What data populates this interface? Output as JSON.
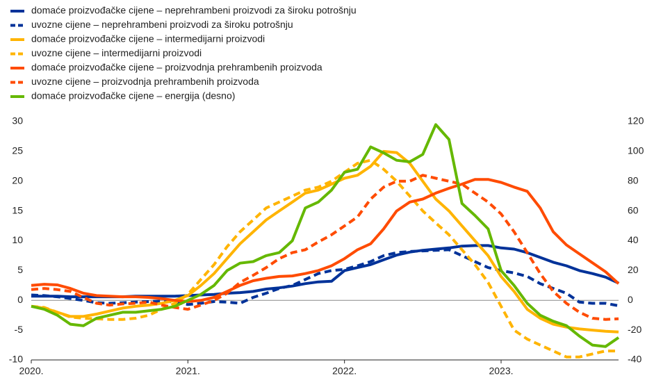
{
  "chart_data": {
    "type": "line",
    "x": [
      2020,
      2020.083,
      2020.167,
      2020.25,
      2020.333,
      2020.417,
      2020.5,
      2020.583,
      2020.667,
      2020.75,
      2020.833,
      2020.917,
      2021,
      2021.083,
      2021.167,
      2021.25,
      2021.333,
      2021.417,
      2021.5,
      2021.583,
      2021.667,
      2021.75,
      2021.833,
      2021.917,
      2022,
      2022.083,
      2022.167,
      2022.25,
      2022.333,
      2022.417,
      2022.5,
      2022.583,
      2022.667,
      2022.75,
      2022.833,
      2022.917,
      2023,
      2023.083,
      2023.167,
      2023.25,
      2023.333,
      2023.417,
      2023.5,
      2023.583,
      2023.667,
      2023.75
    ],
    "xlim": [
      2020,
      2023.75
    ],
    "xticks": [
      {
        "value": 2020,
        "label": "2020."
      },
      {
        "value": 2021,
        "label": "2021."
      },
      {
        "value": 2022,
        "label": "2022."
      },
      {
        "value": 2023,
        "label": "2023."
      }
    ],
    "ylim": [
      -10,
      30
    ],
    "yticks": [
      -10,
      -5,
      0,
      5,
      10,
      15,
      20,
      25,
      30
    ],
    "y2lim": [
      -40,
      120
    ],
    "y2ticks": [
      -40,
      -20,
      0,
      20,
      40,
      60,
      80,
      100,
      120
    ],
    "series": [
      {
        "name": "domaće proizvođačke cijene – neprehrambeni proizvodi za široku potrošnju",
        "color": "#003299",
        "dash": false,
        "values": [
          0.7,
          0.7,
          0.7,
          0.6,
          0.6,
          0.6,
          0.6,
          0.6,
          0.7,
          0.7,
          0.7,
          0.7,
          0.8,
          0.9,
          1.0,
          1.2,
          1.3,
          1.5,
          1.9,
          2.1,
          2.4,
          2.8,
          3.1,
          3.2,
          5.0,
          5.5,
          6.0,
          6.8,
          7.6,
          8.1,
          8.4,
          8.6,
          8.8,
          9.1,
          9.2,
          9.2,
          8.8,
          8.6,
          8.0,
          7.2,
          6.4,
          5.8,
          5.0,
          4.5,
          3.9,
          2.9
        ]
      },
      {
        "name": "uvozne cijene – neprehrambeni proizvodi za široku potrošnju",
        "color": "#003299",
        "dash": true,
        "values": [
          0.9,
          0.8,
          0.6,
          0.3,
          0,
          -0.4,
          -0.5,
          -0.4,
          -0.3,
          -0.2,
          -0.1,
          -0.3,
          -0.7,
          -0.5,
          -0.2,
          -0.3,
          -0.5,
          0.5,
          1.2,
          2.0,
          2.5,
          3.5,
          4.5,
          5.0,
          5.2,
          5.8,
          6.5,
          7.5,
          8.0,
          8.2,
          8.3,
          8.4,
          8.5,
          7.5,
          6.5,
          5.5,
          5.0,
          4.6,
          4.0,
          2.8,
          2.0,
          1.2,
          -0.3,
          -0.5,
          -0.5,
          -0.9
        ]
      },
      {
        "name": "domaće proizvođačke cijene – intermedijarni proizvodi",
        "color": "#ffb400",
        "dash": false,
        "values": [
          -1,
          -1.3,
          -2,
          -2.7,
          -2.7,
          -2.3,
          -1.8,
          -1.3,
          -1.0,
          -0.8,
          -0.5,
          0,
          0.8,
          2.5,
          4.5,
          7,
          9.5,
          11.5,
          13.5,
          15,
          16.5,
          18,
          18.5,
          19.5,
          20.5,
          21,
          22.5,
          25,
          24.8,
          23,
          20,
          17,
          15,
          12.5,
          10,
          7.5,
          4,
          1.5,
          -1.5,
          -3,
          -4,
          -4.5,
          -4.8,
          -5,
          -5.2,
          -5.3
        ]
      },
      {
        "name": "uvozne cijene – intermedijarni proizvodi",
        "color": "#ffb400",
        "dash": true,
        "values": [
          -1,
          -1.2,
          -2,
          -2.8,
          -3,
          -3.1,
          -3.2,
          -3.2,
          -3,
          -2.5,
          -1.5,
          -0.5,
          1,
          3.5,
          6,
          9,
          11.5,
          13.5,
          15.5,
          16.5,
          17.5,
          18.5,
          19,
          20,
          21.5,
          23,
          23.5,
          22,
          20,
          17.5,
          15,
          13,
          11,
          8.5,
          6,
          3,
          -1,
          -5,
          -6.5,
          -7.5,
          -8.5,
          -9.5,
          -9.5,
          -9,
          -8.5,
          -8.5
        ]
      },
      {
        "name": "domaće proizvođačke cijene – proizvodnja prehrambenih proizvoda",
        "color": "#ff4b00",
        "dash": false,
        "values": [
          2.5,
          2.7,
          2.6,
          2,
          1.2,
          0.8,
          0.7,
          0.6,
          0.6,
          0.5,
          0.3,
          0,
          -0.2,
          0,
          0.5,
          1.5,
          2.5,
          3.3,
          3.7,
          4,
          4.1,
          4.5,
          5,
          5.8,
          7,
          8.5,
          9.5,
          12,
          15,
          16.5,
          17,
          18,
          18.8,
          19.5,
          20.3,
          20.3,
          19.8,
          19,
          18.3,
          15.5,
          11.5,
          9.3,
          7.8,
          6.3,
          4.8,
          2.8
        ]
      },
      {
        "name": "uvozne cijene – proizvodnja prehrambenih proizvoda",
        "color": "#ff4b00",
        "dash": true,
        "values": [
          1.8,
          2,
          1.8,
          1.5,
          0.5,
          -0.5,
          -0.8,
          -0.6,
          -0.5,
          -0.3,
          -0.8,
          -1.2,
          -1.5,
          -0.8,
          0,
          1.2,
          3,
          4.2,
          5.5,
          7,
          8,
          8.5,
          9.8,
          11,
          12.5,
          14,
          17,
          19,
          20,
          20,
          21,
          20.5,
          20,
          19.5,
          18,
          16.5,
          14.5,
          11.5,
          8,
          4.5,
          1.5,
          -0.5,
          -2,
          -3,
          -3.2,
          -3.1
        ]
      },
      {
        "name": "domaće proizvođačke cijene – energija (desno)",
        "color": "#65b800",
        "dash": false,
        "axis": "y2",
        "values": [
          -4,
          -6,
          -10,
          -16,
          -17,
          -12,
          -10,
          -8,
          -8,
          -7,
          -6,
          -4,
          0,
          4,
          10,
          20,
          25,
          26,
          30,
          32,
          40,
          62,
          66,
          74,
          86,
          88,
          103,
          99,
          94,
          93,
          98,
          118,
          108,
          65,
          57,
          48,
          20,
          10,
          -2,
          -10,
          -14,
          -17,
          -24,
          -30,
          -31,
          -25
        ]
      }
    ]
  }
}
